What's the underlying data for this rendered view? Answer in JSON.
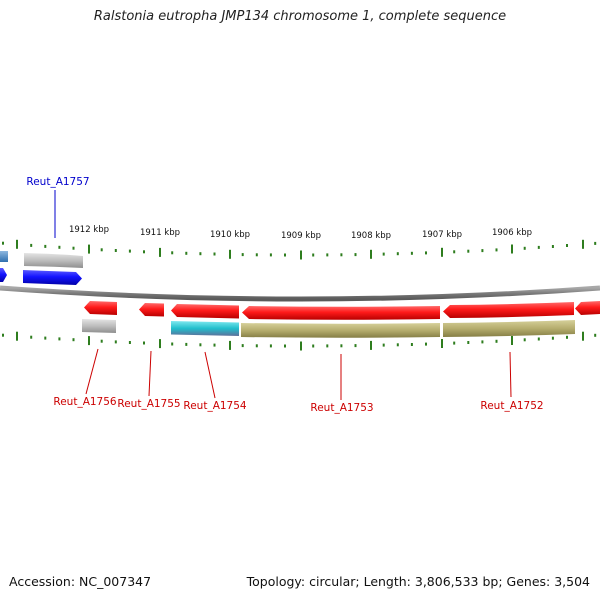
{
  "title": "Ralstonia eutropha JMP134 chromosome 1, complete sequence",
  "accession_text": "Accession: NC_007347",
  "topology_text": "Topology: circular; Length: 3,806,533 bp; Genes: 3,504",
  "ruler_labels": [
    "1912 kbp",
    "1911 kbp",
    "1910 kbp",
    "1909 kbp",
    "1908 kbp",
    "1907 kbp",
    "1906 kbp"
  ],
  "gene_labels": {
    "top": [
      "Reut_A1757"
    ],
    "bottom": [
      "Reut_A1756",
      "Reut_A1755",
      "Reut_A1754",
      "Reut_A1753",
      "Reut_A1752"
    ]
  },
  "colors": {
    "forward_gene": "#1b1bff",
    "reverse_gene": "#ff1a1a",
    "forward_label": "#0000cc",
    "reverse_label": "#cc0000",
    "backbone": "#7f7f7f",
    "ticks": "#2e7d1e",
    "product_gray": "#bdbdbd",
    "product_olive": "#b5ad6e",
    "product_cyan": "#2fc4cf"
  }
}
